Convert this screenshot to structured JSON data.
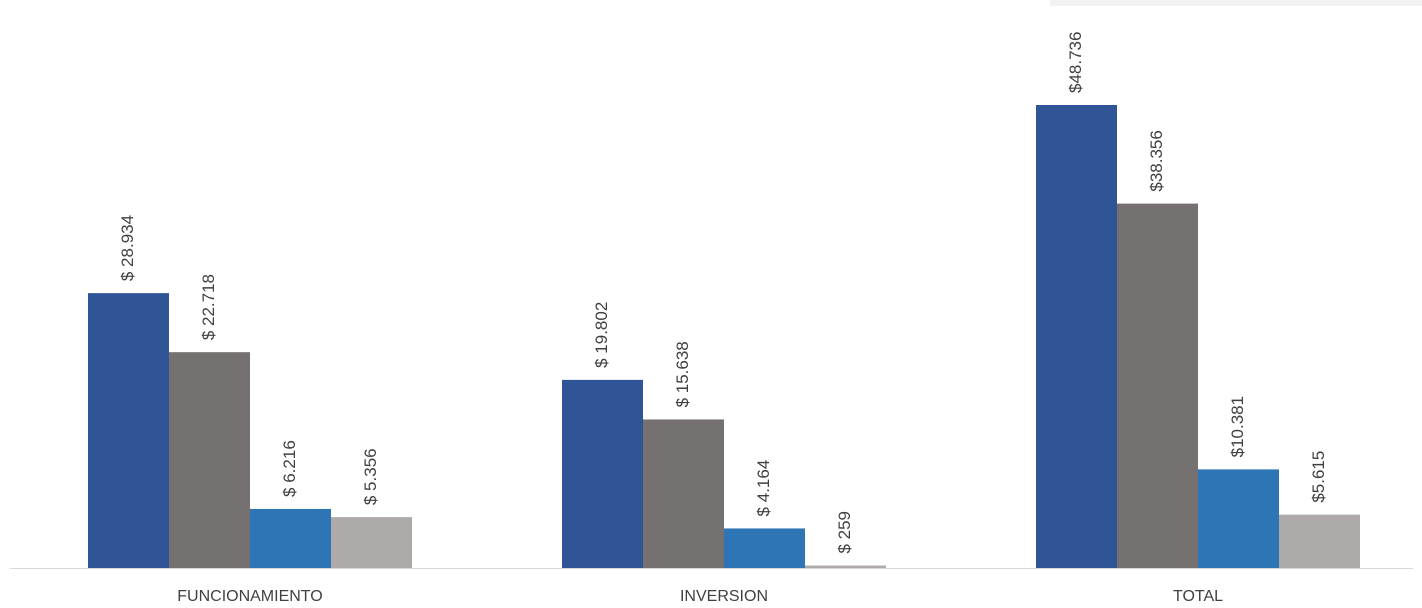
{
  "chart_data": {
    "type": "bar",
    "categories": [
      "FUNCIONAMIENTO",
      "INVERSION",
      "TOTAL"
    ],
    "series": [
      {
        "values": [
          28934,
          19802,
          48736
        ],
        "labels": [
          "$ 28.934",
          "$ 19.802",
          "$48.736"
        ],
        "color": "#2f5597"
      },
      {
        "values": [
          22718,
          15638,
          38356
        ],
        "labels": [
          "$ 22.718",
          "$ 15.638",
          "$38.356"
        ],
        "color": "#767171"
      },
      {
        "values": [
          6216,
          4164,
          10381
        ],
        "labels": [
          "$ 6.216",
          "$ 4.164",
          "$10.381"
        ],
        "color": "#2e75b6"
      },
      {
        "values": [
          5356,
          259,
          5615
        ],
        "labels": [
          "$ 5.356",
          "$ 259",
          "$5.615"
        ],
        "color": "#aeaaaa"
      }
    ],
    "title": "",
    "xlabel": "",
    "ylabel": "",
    "ylim": [
      0,
      48736
    ],
    "grid": false,
    "legend": "none"
  }
}
